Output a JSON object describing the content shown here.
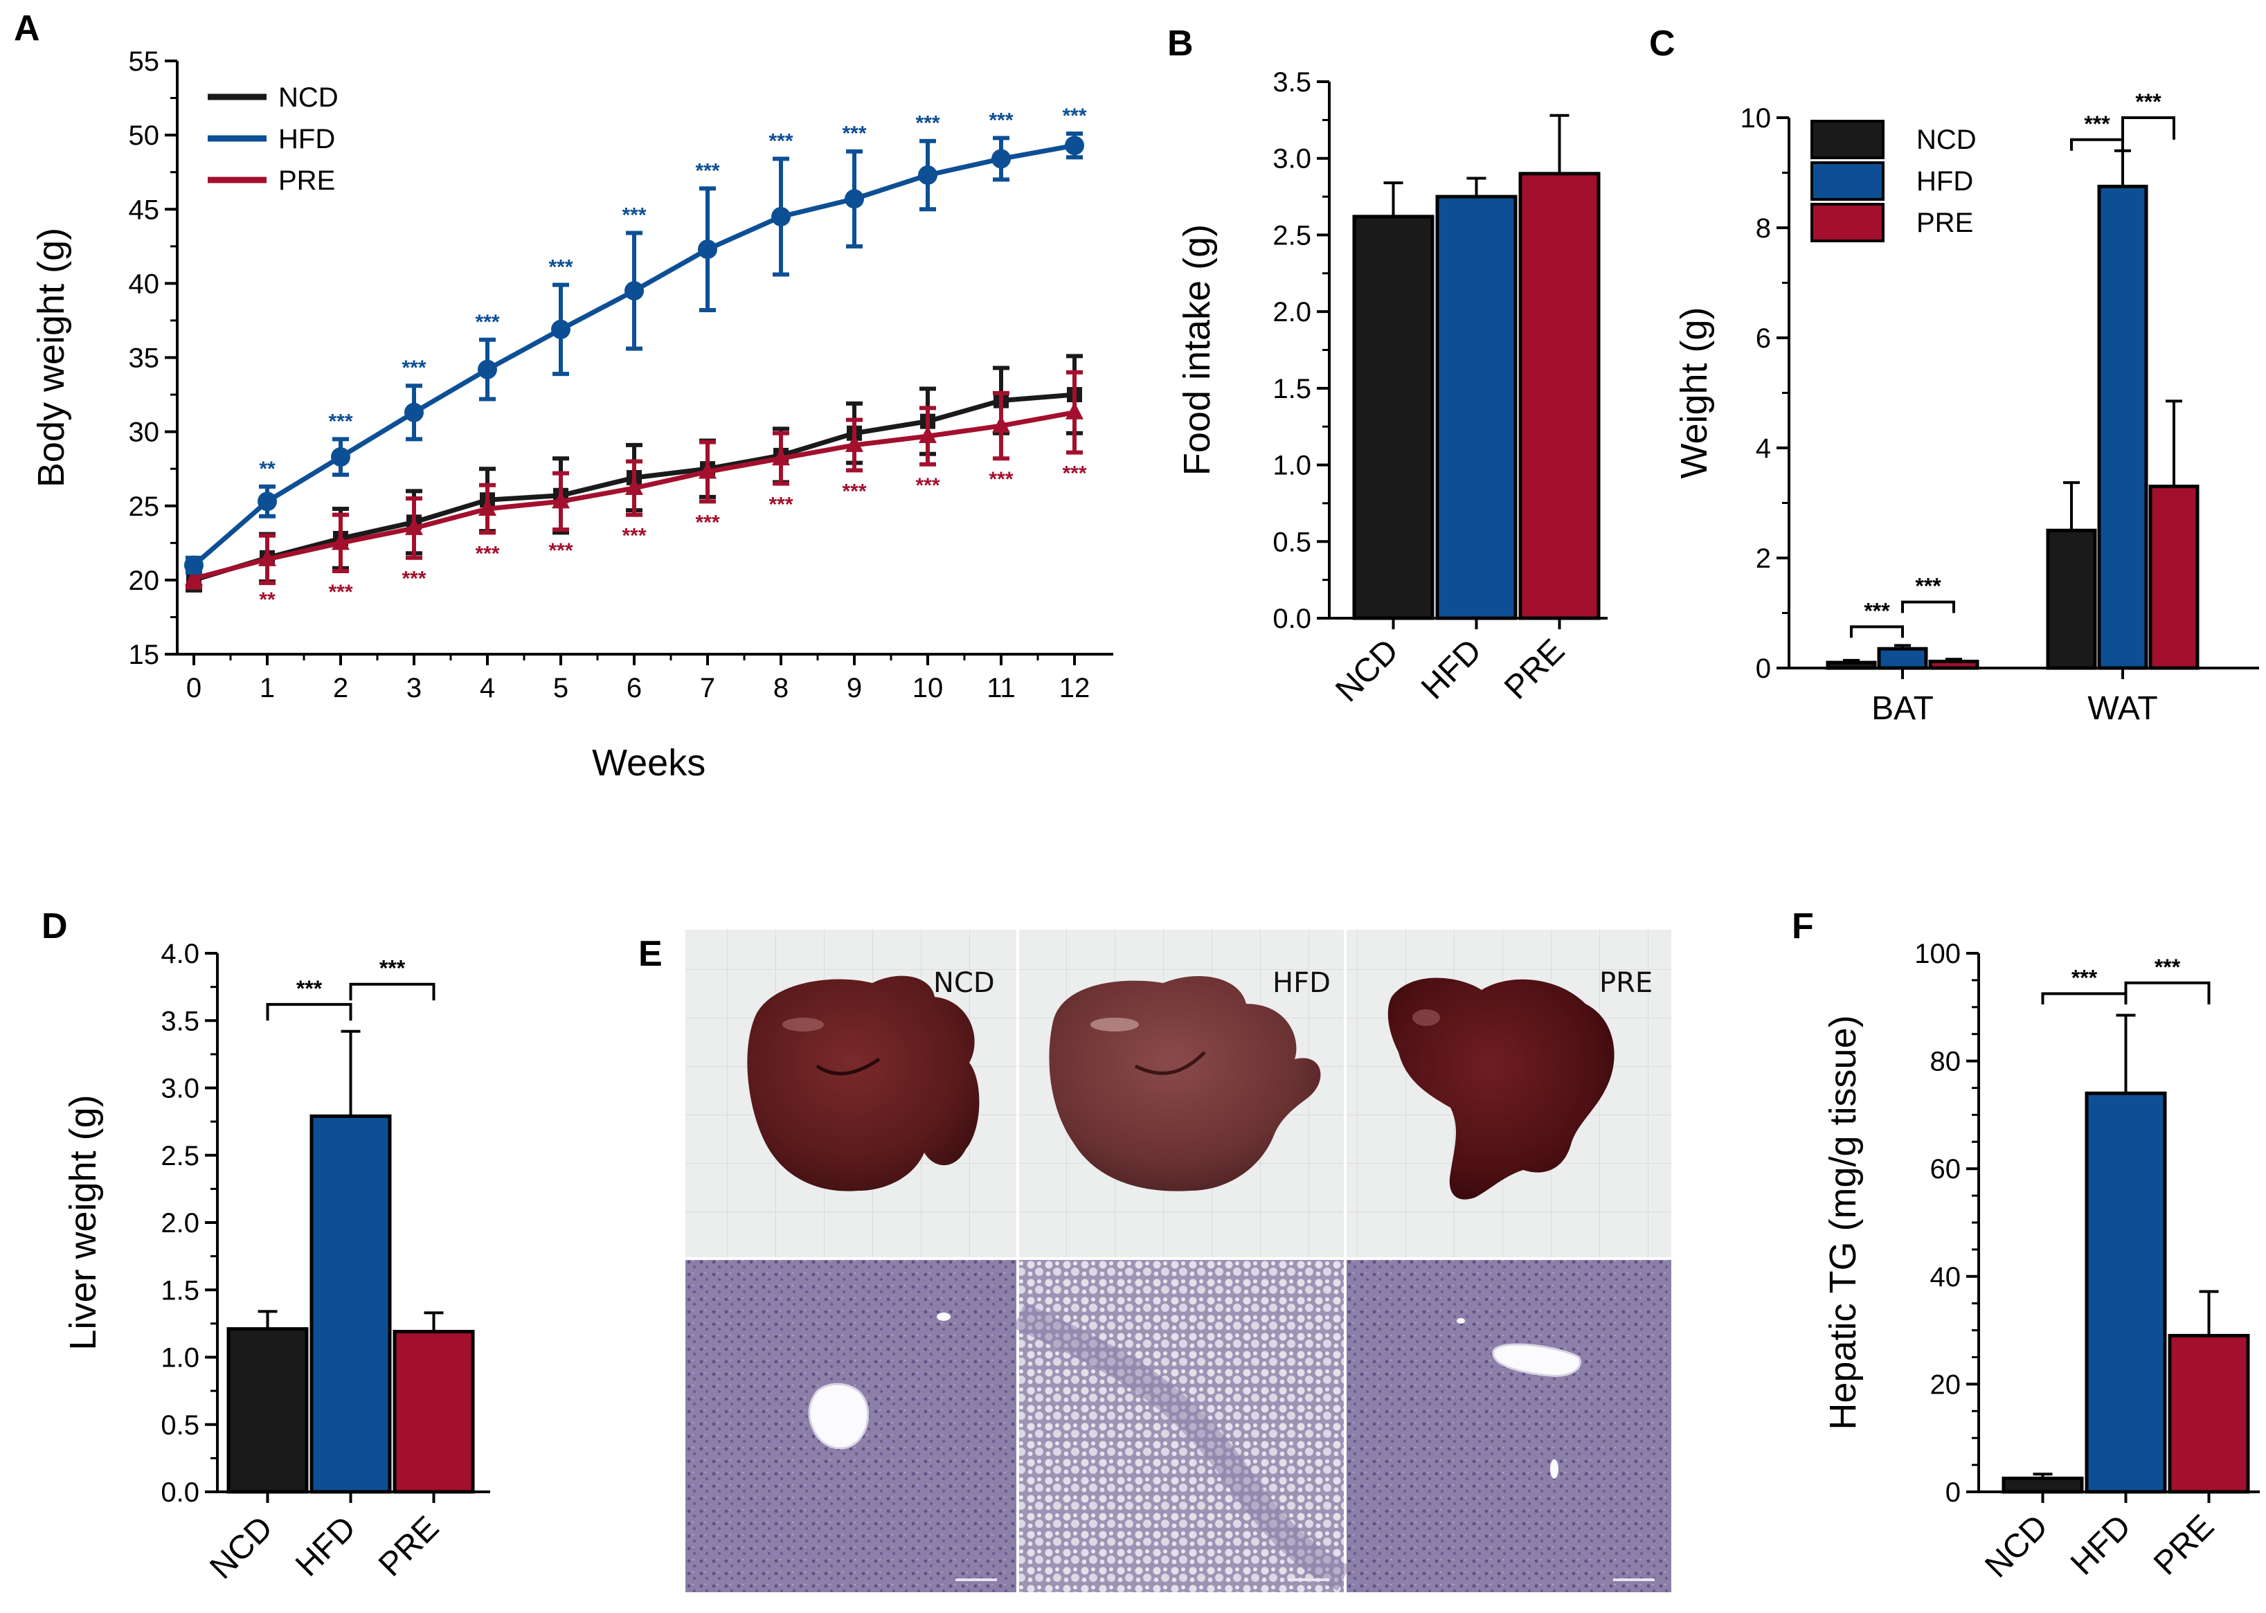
{
  "colors": {
    "NCD": "#1a1a1a",
    "HFD": "#0d4f95",
    "PRE": "#a3102d"
  },
  "chart_data": [
    {
      "panel": "A",
      "type": "line",
      "xlabel": "Weeks",
      "ylabel": "Body weight (g)",
      "xlim": [
        0,
        12
      ],
      "ylim": [
        15,
        55
      ],
      "x": [
        0,
        1,
        2,
        3,
        4,
        5,
        6,
        7,
        8,
        9,
        10,
        11,
        12
      ],
      "yticks": [
        15,
        20,
        25,
        30,
        35,
        40,
        45,
        50,
        55
      ],
      "series": [
        {
          "name": "NCD",
          "values": [
            20.0,
            21.5,
            22.8,
            23.9,
            25.4,
            25.7,
            26.9,
            27.5,
            28.4,
            29.9,
            30.7,
            32.1,
            32.5
          ],
          "errors": [
            0.7,
            1.6,
            2.0,
            2.1,
            2.1,
            2.5,
            2.2,
            1.9,
            1.8,
            2.0,
            2.2,
            2.2,
            2.6
          ]
        },
        {
          "name": "HFD",
          "values": [
            21.0,
            25.3,
            28.3,
            31.3,
            34.2,
            36.9,
            39.5,
            42.3,
            44.5,
            45.7,
            47.3,
            48.4,
            49.3
          ],
          "errors": [
            0.5,
            1.0,
            1.2,
            1.8,
            2.0,
            3.0,
            3.9,
            4.1,
            3.9,
            3.2,
            2.3,
            1.4,
            0.8
          ]
        },
        {
          "name": "PRE",
          "values": [
            20.1,
            21.4,
            22.5,
            23.5,
            24.8,
            25.3,
            26.2,
            27.3,
            28.2,
            29.1,
            29.7,
            30.4,
            31.3
          ],
          "errors": [
            0.6,
            1.6,
            1.9,
            2.0,
            1.6,
            1.9,
            1.8,
            2.0,
            1.7,
            1.7,
            1.9,
            2.2,
            2.7
          ]
        }
      ],
      "sig_hfd": [
        "",
        "**",
        "***",
        "***",
        "***",
        "***",
        "***",
        "***",
        "***",
        "***",
        "***",
        "***",
        "***"
      ],
      "sig_pre": [
        "",
        "**",
        "***",
        "***",
        "***",
        "***",
        "***",
        "***",
        "***",
        "***",
        "***",
        "***",
        "***"
      ]
    },
    {
      "panel": "B",
      "type": "bar",
      "ylabel": "Food intake (g)",
      "categories": [
        "NCD",
        "HFD",
        "PRE"
      ],
      "values": [
        2.62,
        2.75,
        2.9
      ],
      "errors": [
        0.22,
        0.12,
        0.38
      ],
      "ylim": [
        0,
        3.5
      ],
      "yticks": [
        "0.0",
        "0.5",
        "1.0",
        "1.5",
        "2.0",
        "2.5",
        "3.0",
        "3.5"
      ]
    },
    {
      "panel": "C",
      "type": "bar",
      "ylabel": "Weight (g)",
      "categories": [
        "BAT",
        "WAT"
      ],
      "series": [
        {
          "name": "NCD",
          "values": [
            0.1,
            2.5
          ],
          "errors": [
            0.04,
            0.87
          ]
        },
        {
          "name": "HFD",
          "values": [
            0.35,
            8.75
          ],
          "errors": [
            0.06,
            0.65
          ]
        },
        {
          "name": "PRE",
          "values": [
            0.12,
            3.3
          ],
          "errors": [
            0.04,
            1.55
          ]
        }
      ],
      "ylim": [
        0,
        10
      ],
      "yticks": [
        "0",
        "2",
        "4",
        "6",
        "8",
        "10"
      ],
      "significance": [
        "***",
        "***",
        "***",
        "***"
      ]
    },
    {
      "panel": "D",
      "type": "bar",
      "ylabel": "Liver weight (g)",
      "categories": [
        "NCD",
        "HFD",
        "PRE"
      ],
      "values": [
        1.21,
        2.79,
        1.19
      ],
      "errors": [
        0.13,
        0.63,
        0.14
      ],
      "ylim": [
        0,
        4.0
      ],
      "yticks": [
        "0.0",
        "0.5",
        "1.0",
        "1.5",
        "2.0",
        "2.5",
        "3.0",
        "3.5",
        "4.0"
      ],
      "significance": [
        "***",
        "***"
      ]
    },
    {
      "panel": "F",
      "type": "bar",
      "ylabel": "Hepatic TG (mg/g tissue)",
      "categories": [
        "NCD",
        "HFD",
        "PRE"
      ],
      "values": [
        2.5,
        74,
        29
      ],
      "errors": [
        0.8,
        14.5,
        8.2
      ],
      "ylim": [
        0,
        100
      ],
      "yticks": [
        "0",
        "20",
        "40",
        "60",
        "80",
        "100"
      ],
      "significance": [
        "***",
        "***"
      ]
    }
  ],
  "panel_e": {
    "letter": "E",
    "labels": [
      "NCD",
      "HFD",
      "PRE"
    ],
    "top_row": "Gross liver morphology",
    "bottom_row": "H&E stained liver sections"
  },
  "letters": {
    "A": "A",
    "B": "B",
    "C": "C",
    "D": "D",
    "F": "F"
  }
}
